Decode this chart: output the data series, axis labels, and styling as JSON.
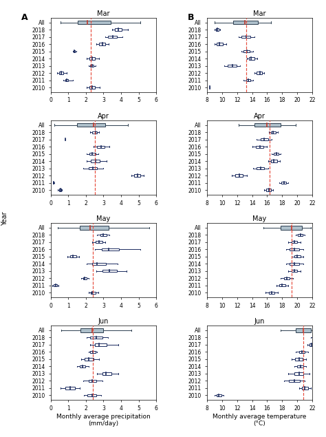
{
  "panel_A": {
    "months": [
      "Mar",
      "Apr",
      "May",
      "Jun"
    ],
    "xlim": [
      0,
      6
    ],
    "xticks": [
      0,
      1,
      2,
      3,
      4,
      5,
      6
    ],
    "xlabel": "Monthly average precipitation\n(mm/day)",
    "dashed_line": {
      "Mar": 2.3,
      "Apr": 2.5,
      "May": 2.4,
      "Jun": 2.4
    },
    "boxes": {
      "Mar": {
        "All": [
          0.55,
          1.55,
          2.1,
          3.4,
          5.1
        ],
        "2018": [
          3.5,
          3.65,
          3.85,
          4.05,
          4.4
        ],
        "2017": [
          3.1,
          3.25,
          3.55,
          3.75,
          4.1
        ],
        "2016": [
          2.6,
          2.75,
          2.95,
          3.1,
          3.3
        ],
        "2015": [
          1.25,
          1.3,
          1.35,
          1.4,
          1.45
        ],
        "2014": [
          2.05,
          2.2,
          2.35,
          2.5,
          2.75
        ],
        "2013": [
          2.15,
          2.25,
          2.35,
          2.45,
          2.55
        ],
        "2012": [
          0.35,
          0.5,
          0.6,
          0.7,
          0.9
        ],
        "2011": [
          0.7,
          0.82,
          0.9,
          1.0,
          1.25
        ],
        "2010": [
          2.05,
          2.2,
          2.35,
          2.5,
          2.8
        ]
      },
      "Apr": {
        "All": [
          0.2,
          1.5,
          2.45,
          3.1,
          4.4
        ],
        "2018": [
          2.25,
          2.35,
          2.55,
          2.65,
          2.75
        ],
        "2017": [
          0.85,
          0.85,
          0.85,
          0.85,
          0.85
        ],
        "2016": [
          2.45,
          2.65,
          2.85,
          3.05,
          3.35
        ],
        "2015": [
          2.05,
          2.2,
          2.35,
          2.55,
          2.7
        ],
        "2014": [
          2.05,
          2.3,
          2.55,
          2.8,
          3.2
        ],
        "2013": [
          1.85,
          2.15,
          2.4,
          2.65,
          3.0
        ],
        "2012": [
          4.6,
          4.75,
          4.95,
          5.1,
          5.3
        ],
        "2011": [
          0.12,
          0.15,
          0.17,
          0.19,
          0.22
        ],
        "2010": [
          0.4,
          0.5,
          0.55,
          0.6,
          0.65
        ]
      },
      "May": {
        "All": [
          0.4,
          1.65,
          2.25,
          3.3,
          5.6
        ],
        "2018": [
          2.65,
          2.82,
          3.0,
          3.18,
          3.35
        ],
        "2017": [
          2.35,
          2.55,
          2.75,
          2.95,
          3.1
        ],
        "2016": [
          2.5,
          2.9,
          3.3,
          3.9,
          5.1
        ],
        "2015": [
          0.95,
          1.1,
          1.25,
          1.45,
          1.6
        ],
        "2014": [
          2.05,
          2.35,
          2.65,
          3.15,
          3.8
        ],
        "2013": [
          2.6,
          2.95,
          3.35,
          3.75,
          4.3
        ],
        "2012": [
          1.75,
          1.85,
          1.95,
          2.05,
          2.15
        ],
        "2011": [
          0.1,
          0.18,
          0.28,
          0.38,
          0.44
        ],
        "2010": [
          2.15,
          2.28,
          2.38,
          2.55,
          2.7
        ]
      },
      "Jun": {
        "All": [
          0.6,
          1.7,
          2.35,
          3.0,
          4.6
        ],
        "2018": [
          2.05,
          2.25,
          2.6,
          2.95,
          3.25
        ],
        "2017": [
          2.25,
          2.5,
          2.75,
          3.2,
          3.85
        ],
        "2016": [
          2.15,
          2.25,
          2.4,
          2.55,
          2.65
        ],
        "2015": [
          1.75,
          1.95,
          2.15,
          2.45,
          2.75
        ],
        "2014": [
          1.5,
          1.65,
          1.82,
          1.98,
          2.15
        ],
        "2013": [
          2.65,
          2.95,
          3.15,
          3.45,
          3.85
        ],
        "2012": [
          1.85,
          2.15,
          2.35,
          2.6,
          2.95
        ],
        "2011": [
          0.55,
          0.82,
          1.1,
          1.38,
          1.65
        ],
        "2010": [
          1.9,
          2.1,
          2.38,
          2.6,
          2.85
        ]
      }
    }
  },
  "panel_B": {
    "months": [
      "Mar",
      "Apr",
      "May",
      "Jun"
    ],
    "xlim": [
      8,
      22
    ],
    "xticks": [
      8,
      10,
      12,
      14,
      16,
      18,
      20,
      22
    ],
    "xlabel": "Monthly average temperature\n(°C)",
    "dashed_line": {
      "Mar": 13.2,
      "Apr": 16.3,
      "May": 19.2,
      "Jun": 20.8
    },
    "boxes": {
      "Mar": {
        "All": [
          9.0,
          11.5,
          13.0,
          14.8,
          16.5
        ],
        "2018": [
          9.0,
          9.2,
          9.4,
          9.6,
          9.8
        ],
        "2017": [
          12.2,
          12.6,
          13.2,
          13.8,
          14.3
        ],
        "2016": [
          9.0,
          9.3,
          9.7,
          10.1,
          10.6
        ],
        "2015": [
          12.6,
          12.9,
          13.3,
          13.7,
          14.1
        ],
        "2014": [
          13.3,
          13.6,
          13.9,
          14.3,
          14.7
        ],
        "2013": [
          10.3,
          10.8,
          11.4,
          11.9,
          12.4
        ],
        "2012": [
          14.3,
          14.6,
          15.0,
          15.3,
          15.6
        ],
        "2011": [
          12.9,
          13.2,
          13.5,
          13.8,
          14.1
        ],
        "2010": [
          8.4,
          8.4,
          8.4,
          8.4,
          8.4
        ]
      },
      "Apr": {
        "All": [
          12.2,
          14.3,
          16.0,
          17.8,
          19.8
        ],
        "2018": [
          16.2,
          16.5,
          16.8,
          17.1,
          17.4
        ],
        "2017": [
          14.6,
          15.1,
          15.6,
          16.1,
          16.6
        ],
        "2016": [
          14.0,
          14.5,
          15.0,
          15.5,
          16.0
        ],
        "2015": [
          16.6,
          16.9,
          17.2,
          17.5,
          17.8
        ],
        "2014": [
          16.1,
          16.5,
          16.9,
          17.3,
          17.7
        ],
        "2013": [
          14.1,
          14.6,
          15.1,
          15.6,
          16.1
        ],
        "2012": [
          11.3,
          11.8,
          12.3,
          12.8,
          13.3
        ],
        "2011": [
          17.6,
          17.9,
          18.2,
          18.5,
          18.8
        ],
        "2010": [
          15.6,
          15.9,
          16.2,
          16.5,
          16.8
        ]
      },
      "May": {
        "All": [
          15.5,
          17.8,
          19.2,
          20.6,
          21.8
        ],
        "2018": [
          19.8,
          20.1,
          20.4,
          20.7,
          21.0
        ],
        "2017": [
          18.8,
          19.2,
          19.6,
          20.0,
          20.4
        ],
        "2016": [
          18.5,
          19.0,
          19.6,
          20.2,
          20.8
        ],
        "2015": [
          19.2,
          19.6,
          20.0,
          20.4,
          20.8
        ],
        "2014": [
          18.5,
          19.0,
          19.6,
          20.2,
          20.8
        ],
        "2013": [
          18.8,
          19.2,
          19.6,
          20.0,
          20.4
        ],
        "2012": [
          17.8,
          18.2,
          18.6,
          19.0,
          19.4
        ],
        "2011": [
          17.2,
          17.6,
          18.0,
          18.4,
          18.8
        ],
        "2010": [
          15.8,
          16.2,
          16.6,
          17.0,
          17.4
        ]
      },
      "Jun": {
        "All": [
          17.8,
          19.8,
          20.8,
          21.8,
          22.5
        ],
        "2018": [
          21.8,
          22.0,
          22.2,
          22.4,
          22.6
        ],
        "2017": [
          21.3,
          21.6,
          21.9,
          22.2,
          22.5
        ],
        "2016": [
          19.8,
          20.2,
          20.6,
          21.0,
          21.4
        ],
        "2015": [
          19.2,
          19.7,
          20.2,
          20.7,
          21.2
        ],
        "2014": [
          19.6,
          20.0,
          20.4,
          20.8,
          21.2
        ],
        "2013": [
          18.8,
          19.6,
          20.2,
          20.8,
          21.6
        ],
        "2012": [
          18.2,
          18.9,
          19.6,
          20.3,
          21.0
        ],
        "2011": [
          20.2,
          20.6,
          21.0,
          21.4,
          21.8
        ],
        "2010": [
          9.0,
          9.3,
          9.6,
          9.9,
          10.2
        ]
      }
    }
  },
  "years": [
    "All",
    "2018",
    "2017",
    "2016",
    "2015",
    "2014",
    "2013",
    "2012",
    "2011",
    "2010"
  ],
  "box_color_all": "#adbfca",
  "box_color_year": "#ffffff",
  "box_edge_all": "#2c3e50",
  "box_edge_year": "#1a2a5e",
  "median_color_all": "#c0392b",
  "median_color_year": "#1a2a5e",
  "dashed_color": "#e74c3c",
  "background": "white"
}
